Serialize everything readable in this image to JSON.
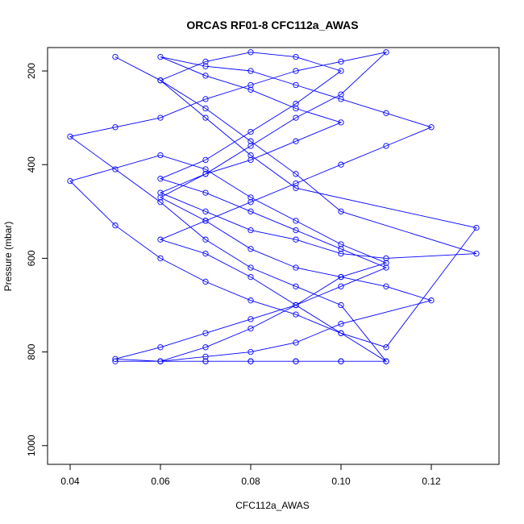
{
  "chart_data": {
    "type": "line",
    "title": "ORCAS RF01-8 CFC112a_AWAS",
    "xlabel": "CFC112a_AWAS",
    "ylabel": "Pressure (mbar)",
    "xlim": [
      0.035,
      0.135
    ],
    "ylim": [
      1040,
      150
    ],
    "y_reversed": true,
    "x_ticks": [
      "0.04",
      "0.06",
      "0.08",
      "0.10",
      "0.12"
    ],
    "y_ticks": [
      "200",
      "400",
      "600",
      "800",
      "1000"
    ],
    "grid": false,
    "series_color": "#0000FF",
    "marker": "open-circle",
    "series": [
      {
        "x": [
          0.05,
          0.06,
          0.07,
          0.08,
          0.09,
          0.1,
          0.11,
          0.1,
          0.09,
          0.08,
          0.07,
          0.06,
          0.05,
          0.04,
          0.05,
          0.06,
          0.07,
          0.08,
          0.09,
          0.1,
          0.11,
          0.1,
          0.09,
          0.08,
          0.07,
          0.06,
          0.07,
          0.08,
          0.09,
          0.1,
          0.11,
          0.12,
          0.1,
          0.09,
          0.08,
          0.07,
          0.06,
          0.07,
          0.08,
          0.09,
          0.1,
          0.11,
          0.1,
          0.09,
          0.08,
          0.07,
          0.06,
          0.04,
          0.05,
          0.06,
          0.07,
          0.08,
          0.09,
          0.1,
          0.11,
          0.13,
          0.09,
          0.08,
          0.07,
          0.06,
          0.07,
          0.08,
          0.09,
          0.1,
          0.09,
          0.08,
          0.07,
          0.06,
          0.07,
          0.08,
          0.09,
          0.1,
          0.11,
          0.1,
          0.09,
          0.08,
          0.07,
          0.06,
          0.05,
          0.06,
          0.07,
          0.08,
          0.09,
          0.1,
          0.11,
          0.1,
          0.09,
          0.08,
          0.07,
          0.06,
          0.07,
          0.08,
          0.09,
          0.1,
          0.11,
          0.12,
          0.11,
          0.1,
          0.09,
          0.08,
          0.07,
          0.06,
          0.07,
          0.08,
          0.09,
          0.1,
          0.09,
          0.08,
          0.07,
          0.06,
          0.07,
          0.08,
          0.09,
          0.1,
          0.11,
          0.13,
          0.1,
          0.09,
          0.08,
          0.07,
          0.06,
          0.05
        ],
        "y": [
          820,
          820,
          820,
          820,
          820,
          820,
          820,
          700,
          660,
          620,
          560,
          480,
          410,
          340,
          320,
          300,
          260,
          230,
          200,
          180,
          160,
          250,
          300,
          360,
          420,
          470,
          520,
          580,
          620,
          640,
          660,
          690,
          740,
          780,
          800,
          810,
          820,
          790,
          750,
          700,
          640,
          610,
          570,
          520,
          470,
          410,
          380,
          435,
          530,
          600,
          650,
          690,
          720,
          760,
          790,
          535,
          450,
          380,
          300,
          220,
          180,
          160,
          170,
          200,
          270,
          330,
          390,
          430,
          460,
          500,
          540,
          580,
          620,
          660,
          700,
          730,
          760,
          790,
          815,
          820,
          820,
          820,
          820,
          820,
          820,
          760,
          700,
          640,
          590,
          560,
          520,
          480,
          440,
          400,
          360,
          320,
          290,
          260,
          230,
          200,
          190,
          170,
          210,
          240,
          280,
          310,
          350,
          390,
          420,
          460,
          500,
          540,
          560,
          590,
          600,
          590,
          500,
          420,
          350,
          280,
          220,
          170
        ]
      }
    ]
  }
}
